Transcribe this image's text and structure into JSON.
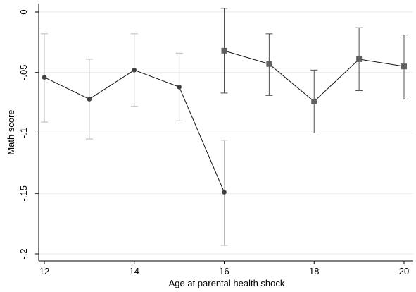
{
  "chart_data": {
    "type": "line",
    "xlabel": "Age at parental health shock",
    "ylabel": "Math score",
    "xlim": [
      12,
      20
    ],
    "ylim": [
      -0.2,
      0
    ],
    "xticks": [
      12,
      14,
      16,
      18,
      20
    ],
    "xtick_labels": [
      "12",
      "14",
      "16",
      "18",
      "20"
    ],
    "yticks": [
      0,
      -0.05,
      -0.1,
      -0.15,
      -0.2
    ],
    "ytick_labels": [
      "0",
      "-.05",
      "-.1",
      "-.15",
      "-.2"
    ],
    "grid": true,
    "legend": "none",
    "series": [
      {
        "marker": "circle",
        "color": "#404040",
        "ci_color": "#b8b8b8",
        "x": [
          12,
          13,
          14,
          15,
          16
        ],
        "y": [
          -0.054,
          -0.072,
          -0.048,
          -0.062,
          -0.149
        ],
        "ci_low": [
          -0.091,
          -0.105,
          -0.078,
          -0.09,
          -0.193
        ],
        "ci_high": [
          -0.018,
          -0.039,
          -0.018,
          -0.034,
          -0.106
        ]
      },
      {
        "marker": "square",
        "color": "#606060",
        "ci_color": "#505050",
        "x": [
          16,
          17,
          18,
          19,
          20
        ],
        "y": [
          -0.032,
          -0.043,
          -0.074,
          -0.039,
          -0.045
        ],
        "ci_low": [
          -0.067,
          -0.069,
          -0.1,
          -0.065,
          -0.072
        ],
        "ci_high": [
          0.003,
          -0.018,
          -0.048,
          -0.013,
          -0.019
        ]
      }
    ]
  }
}
